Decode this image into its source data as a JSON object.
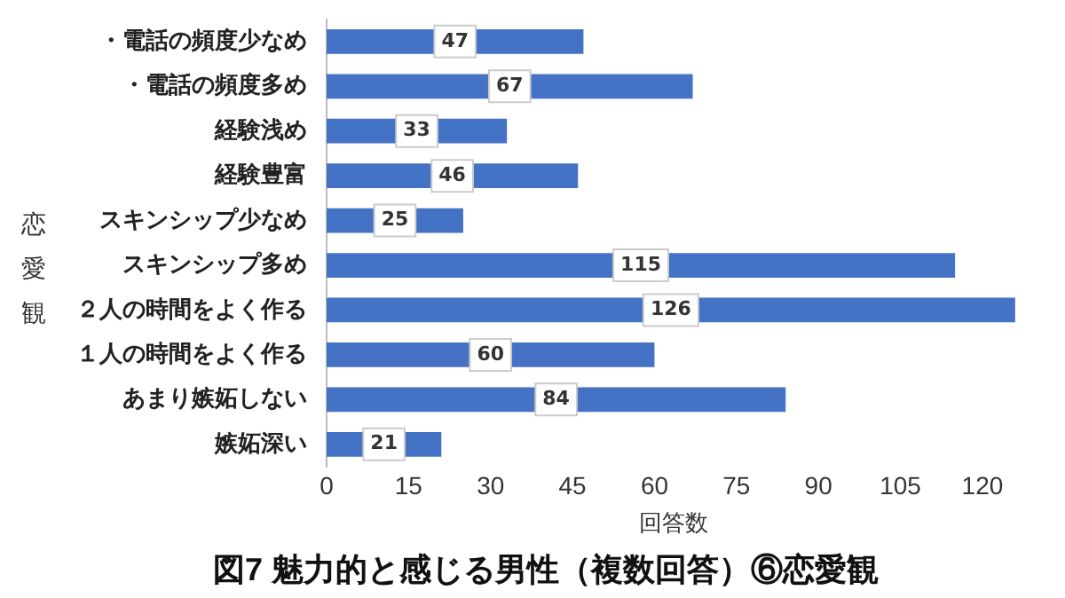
{
  "chart_data": {
    "type": "bar",
    "orientation": "horizontal",
    "title": "図7 魅力的と感じる男性（複数回答）⑥恋愛観",
    "xlabel": "回答数",
    "ylabel": "恋愛観",
    "categories": [
      "・電話の頻度少なめ",
      "・電話の頻度多め",
      "経験浅め",
      "経験豊富",
      "スキンシップ少なめ",
      "スキンシップ多め",
      "２人の時間をよく作る",
      "１人の時間をよく作る",
      "あまり嫉妬しない",
      "嫉妬深い"
    ],
    "values": [
      47,
      67,
      33,
      46,
      25,
      115,
      126,
      60,
      84,
      21
    ],
    "color": "#4472c4",
    "xlim": [
      0,
      127
    ],
    "xticks": [
      0,
      15,
      30,
      45,
      60,
      75,
      90,
      105,
      120
    ],
    "grid": false,
    "data_labels": true
  }
}
